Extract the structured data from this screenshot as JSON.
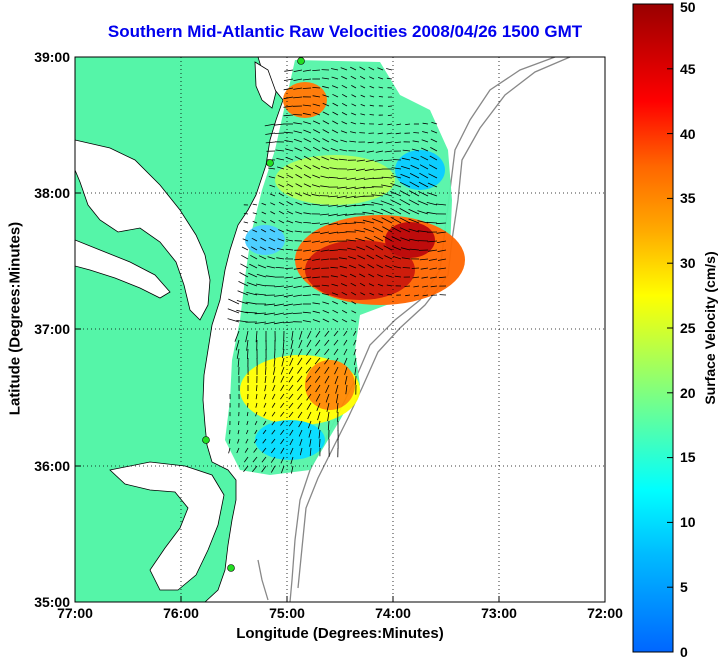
{
  "title": "Southern Mid-Atlantic Raw Velocities 2008/04/26 1500 GMT",
  "x_axis": {
    "label": "Longitude (Degrees:Minutes)",
    "ticks": [
      "77:00",
      "76:00",
      "75:00",
      "74:00",
      "73:00",
      "72:00"
    ],
    "range": [
      -77,
      -72
    ]
  },
  "y_axis": {
    "label": "Latitude (Degrees:Minutes)",
    "ticks": [
      "35:00",
      "36:00",
      "37:00",
      "38:00",
      "39:00"
    ],
    "range": [
      35,
      39
    ]
  },
  "colorbar": {
    "label": "Surface Velocity (cm/s)",
    "ticks": [
      "0",
      "5",
      "10",
      "15",
      "20",
      "25",
      "30",
      "35",
      "40",
      "45",
      "50"
    ],
    "range": [
      0,
      50
    ]
  },
  "colors": {
    "land": "#55f5a8",
    "title": "#0000ee",
    "station": "#22dd22"
  }
}
